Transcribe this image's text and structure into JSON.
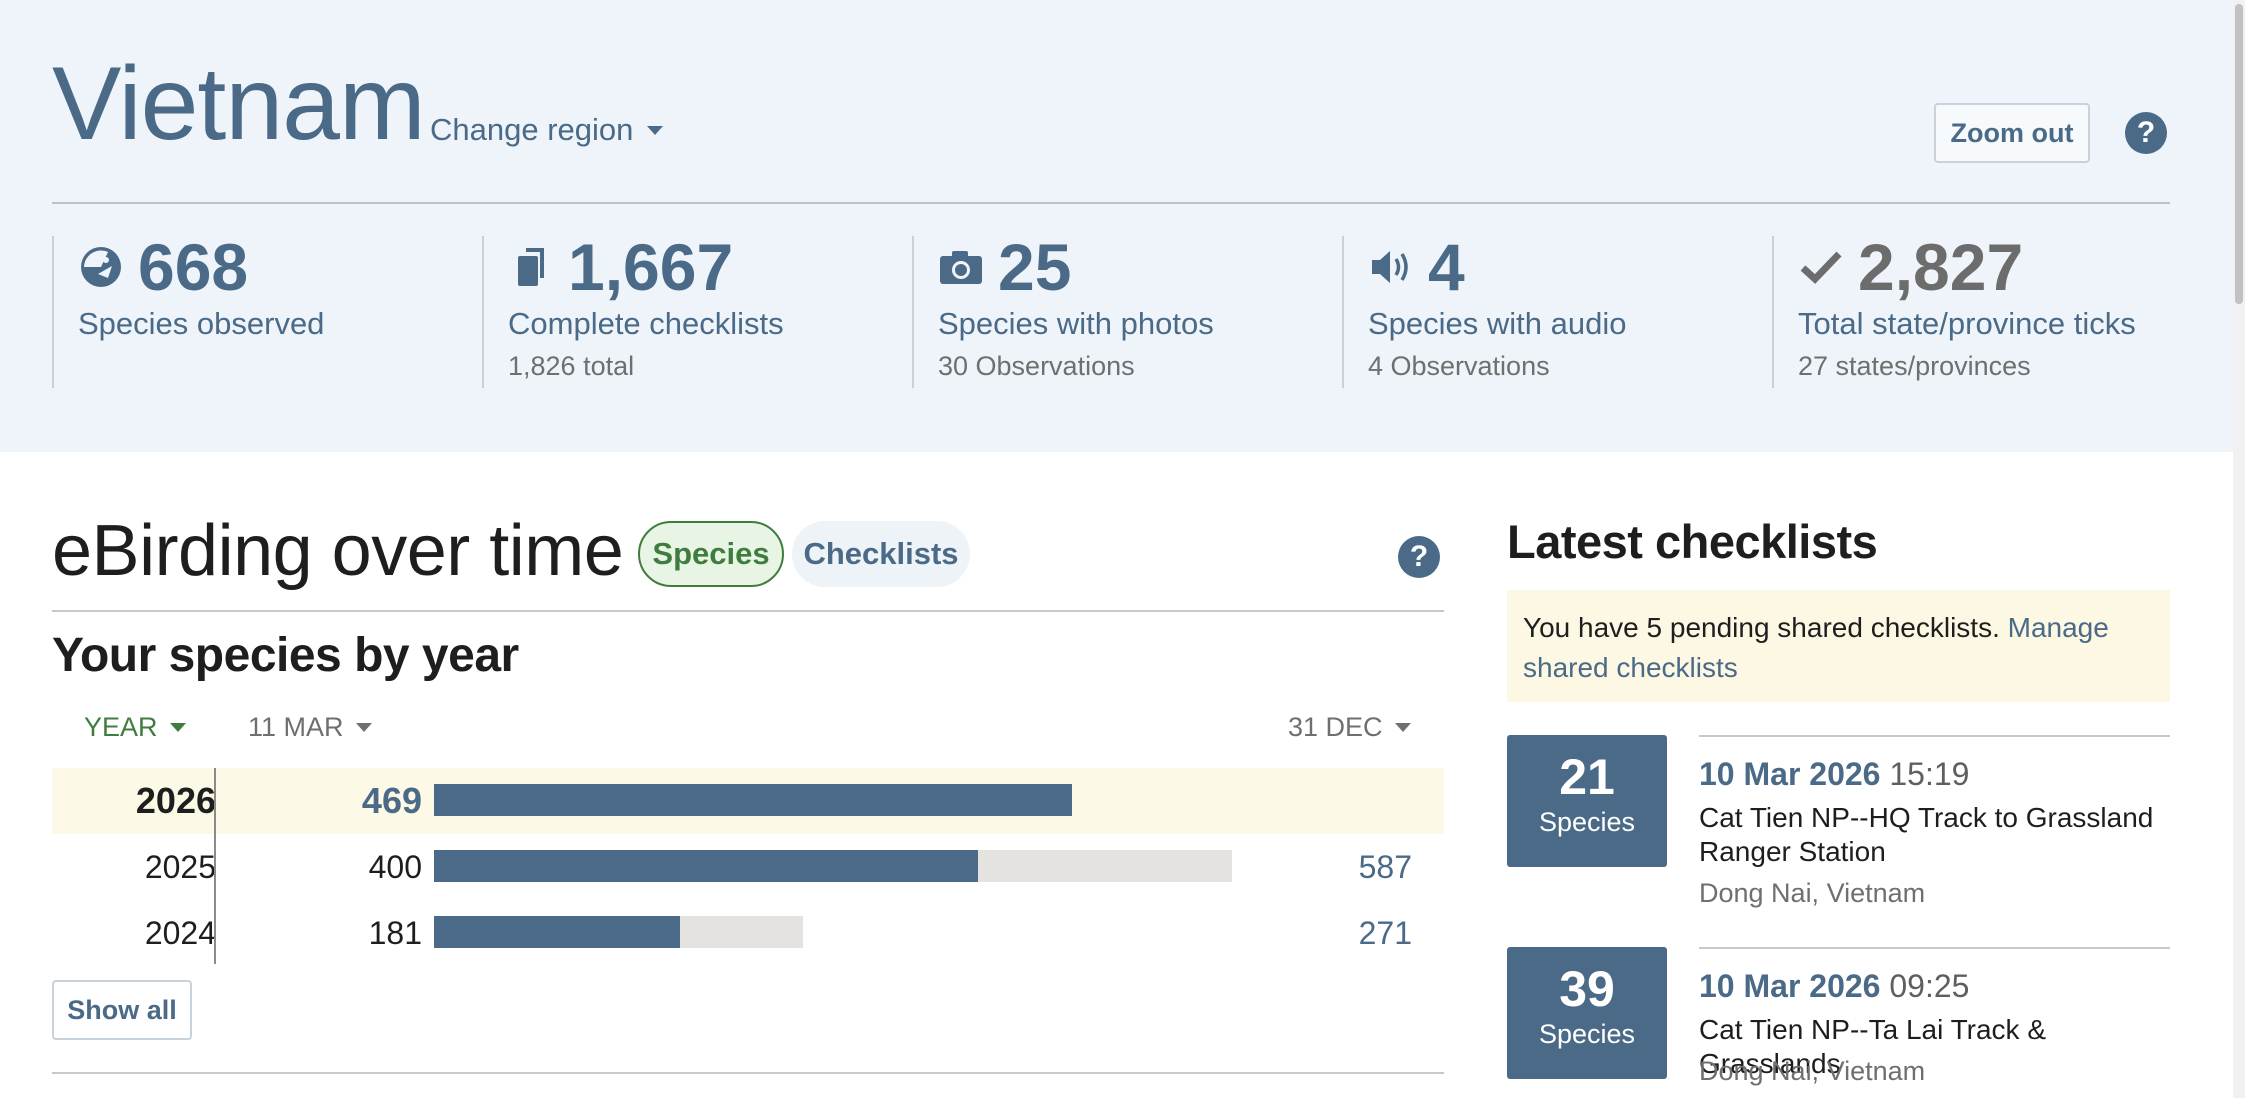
{
  "region": {
    "title": "Vietnam",
    "change_region_label": "Change region",
    "zoom_out_label": "Zoom out",
    "help_glyph": "?"
  },
  "stats": [
    {
      "icon": "bird-icon",
      "value": "668",
      "label": "Species observed",
      "sub": ""
    },
    {
      "icon": "checklists-icon",
      "value": "1,667",
      "label": "Complete checklists",
      "sub": "1,826 total"
    },
    {
      "icon": "camera-icon",
      "value": "25",
      "label": "Species with photos",
      "sub": "30 Observations"
    },
    {
      "icon": "speaker-icon",
      "value": "4",
      "label": "Species with audio",
      "sub": "4 Observations"
    },
    {
      "icon": "checkmark-icon",
      "value": "2,827",
      "label": "Total state/province ticks",
      "sub": "27 states/provinces"
    }
  ],
  "over_time": {
    "title": "eBirding over time",
    "tabs": [
      {
        "label": "Species",
        "active": true
      },
      {
        "label": "Checklists",
        "active": false
      }
    ],
    "help_glyph": "?",
    "chart_title": "Your species by year",
    "controls": {
      "year_label": "YEAR",
      "start_label": "11 MAR",
      "end_label": "31 DEC"
    },
    "show_all_label": "Show all"
  },
  "chart_data": {
    "type": "bar",
    "title": "Your species by year",
    "categories": [
      "2026",
      "2025",
      "2024"
    ],
    "series": [
      {
        "name": "11 MAR",
        "values": [
          469,
          400,
          181
        ]
      },
      {
        "name": "31 DEC",
        "values": [
          null,
          587,
          271
        ]
      }
    ],
    "xlim": [
      0,
      700
    ],
    "grid": false,
    "highlighted_category": "2026"
  },
  "latest": {
    "title": "Latest checklists",
    "notice_text": "You have 5 pending shared checklists.",
    "notice_link": "Manage shared checklists",
    "items": [
      {
        "count": "21",
        "unit": "Species",
        "date": "10 Mar 2026",
        "time": "15:19",
        "name": "Cat Tien NP--HQ Track to Grassland Ranger Station",
        "location": "Dong Nai, Vietnam"
      },
      {
        "count": "39",
        "unit": "Species",
        "date": "10 Mar 2026",
        "time": "09:25",
        "name": "Cat Tien NP--Ta Lai Track & Grasslands",
        "location": "Dong Nai, Vietnam"
      }
    ]
  },
  "colors": {
    "accent": "#4a6a87",
    "green": "#3f7d3f",
    "hero_bg": "#eef4fa",
    "bar_fill": "#4a6a87",
    "bar_track": "#e4e3df",
    "highlight_row": "#fdf9e7"
  }
}
